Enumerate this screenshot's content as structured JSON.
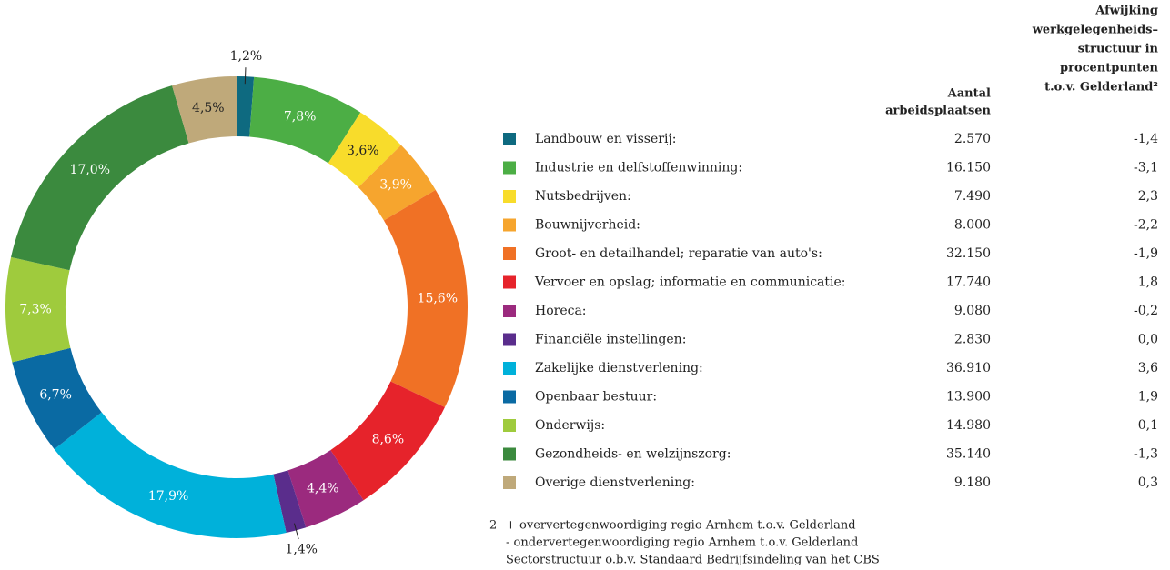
{
  "chart_data": {
    "type": "pie",
    "donut": true,
    "categories": [
      "Landbouw en visserij:",
      "Industrie en delfstoffenwinning:",
      "Nutsbedrijven:",
      "Bouwnijverheid:",
      "Groot- en detailhandel; reparatie van auto's:",
      "Vervoer en opslag; informatie en communicatie:",
      "Horeca:",
      "Financiële instellingen:",
      "Zakelijke dienstverlening:",
      "Openbaar bestuur:",
      "Onderwijs:",
      "Gezondheids- en welzijnszorg:",
      "Overige dienstverlening:"
    ],
    "values": [
      1.2,
      7.8,
      3.6,
      3.9,
      15.6,
      8.6,
      4.4,
      1.4,
      17.9,
      6.7,
      7.3,
      17.0,
      4.5
    ],
    "value_labels": [
      "1,2%",
      "7,8%",
      "3,6%",
      "3,9%",
      "15,6%",
      "8,6%",
      "4,4%",
      "1,4%",
      "17,9%",
      "6,7%",
      "7,3%",
      "17,0%",
      "4,5%"
    ],
    "colors": [
      "#0e6a80",
      "#4cae45",
      "#f8dc2b",
      "#f6a52e",
      "#f07125",
      "#e6232b",
      "#9b2a7e",
      "#5a2d8c",
      "#00b1da",
      "#0a6aa3",
      "#9fcb3d",
      "#3b8a3e",
      "#bfa97a"
    ],
    "label_colors": [
      "#222",
      "#fff",
      "#222",
      "#fff",
      "#fff",
      "#fff",
      "#fff",
      "#222",
      "#fff",
      "#fff",
      "#fff",
      "#fff",
      "#222"
    ]
  },
  "table": {
    "header_jobs": [
      "Aantal",
      "arbeidsplaatsen"
    ],
    "header_deviation": [
      "Afwijking",
      "werkgelegenheids–",
      "structuur in",
      "procentpunten",
      "t.o.v. Gelderland²"
    ],
    "rows": [
      [
        "2.570",
        "-1,4"
      ],
      [
        "16.150",
        "-3,1"
      ],
      [
        "7.490",
        "2,3"
      ],
      [
        "8.000",
        "-2,2"
      ],
      [
        "32.150",
        "-1,9"
      ],
      [
        "17.740",
        "1,8"
      ],
      [
        "9.080",
        "-0,2"
      ],
      [
        "2.830",
        "0,0"
      ],
      [
        "36.910",
        "3,6"
      ],
      [
        "13.900",
        "1,9"
      ],
      [
        "14.980",
        "0,1"
      ],
      [
        "35.140",
        "-1,3"
      ],
      [
        "9.180",
        "0,3"
      ]
    ]
  },
  "footnote": {
    "marker": "2",
    "lines": [
      "+ oververtegenwoordiging regio Arnhem t.o.v. Gelderland",
      "- ondervertegenwoordiging regio Arnhem t.o.v. Gelderland",
      "Sectorstructuur o.b.v. Standaard Bedrijfsindeling van het CBS"
    ]
  }
}
